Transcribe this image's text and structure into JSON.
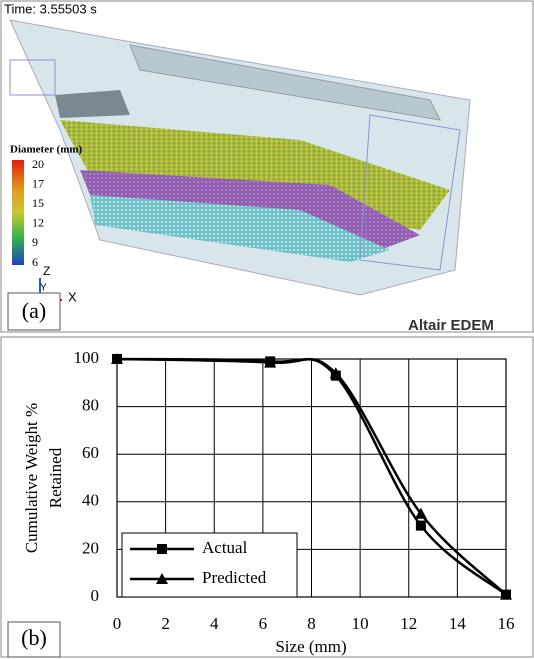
{
  "panel_a": {
    "time_label": "Time: 3.55503 s",
    "colorbar_title": "Diameter (mm)",
    "colorbar_ticks": [
      20,
      17,
      15,
      12,
      9,
      6
    ],
    "axis_labels": [
      "Z",
      "Y",
      "X"
    ],
    "label": "(a)",
    "watermark": "Altair EDEM"
  },
  "chart_data": {
    "type": "line",
    "panel_label": "(b)",
    "xlabel": "Size (mm)",
    "ylabel": [
      "Cumulative Weight %",
      "Retained"
    ],
    "x": [
      0,
      6.3,
      9,
      12.5,
      16
    ],
    "series": [
      {
        "name": "Actual",
        "color": "#000000",
        "marker": "square",
        "values": [
          100,
          99,
          93,
          30,
          1
        ]
      },
      {
        "name": "Predicted",
        "color": "#000000",
        "marker": "triangle",
        "values": [
          100,
          98.5,
          94,
          35,
          1
        ]
      }
    ],
    "xlim": [
      0,
      16
    ],
    "xticks": [
      0,
      2,
      4,
      6,
      8,
      10,
      12,
      14,
      16
    ],
    "ylim": [
      0,
      100
    ],
    "yticks": [
      0,
      20,
      40,
      60,
      80,
      100
    ],
    "grid": true
  }
}
